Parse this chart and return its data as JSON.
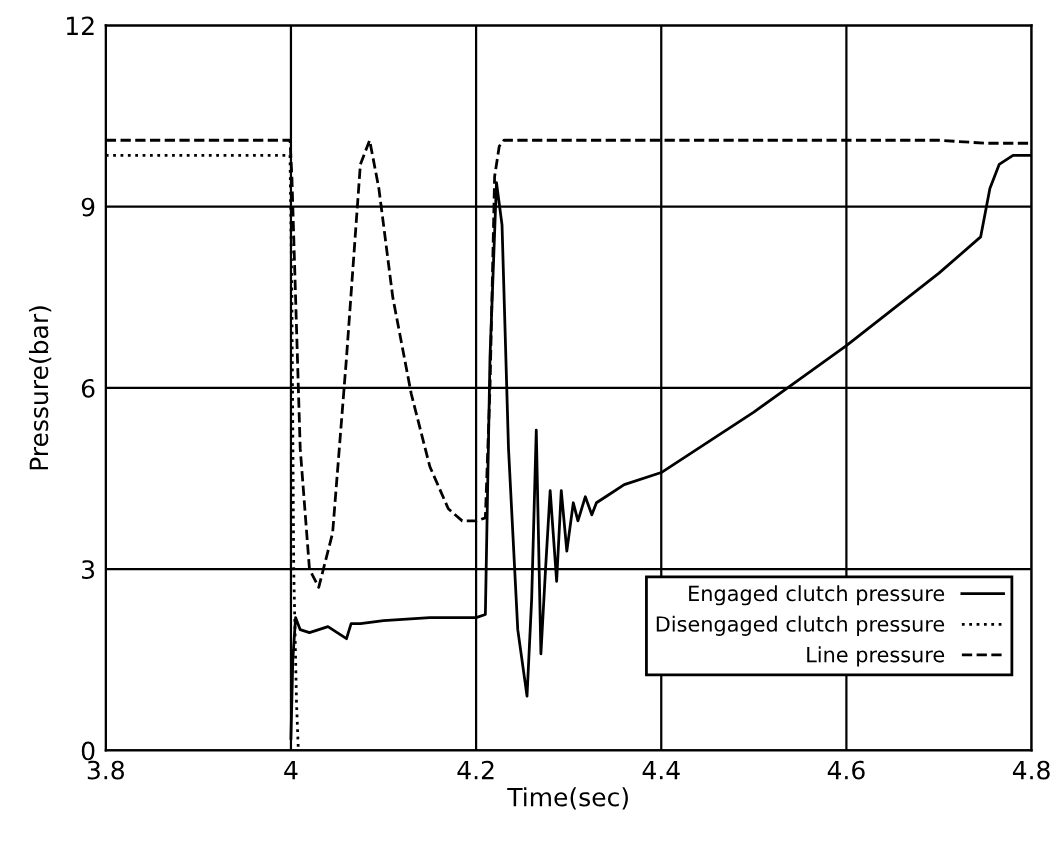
{
  "chart_data": {
    "type": "line",
    "xlabel": "Time(sec)",
    "ylabel": "Pressure(bar)",
    "xlim": [
      3.8,
      4.8
    ],
    "ylim": [
      0,
      12
    ],
    "xticks": [
      3.8,
      4,
      4.2,
      4.4,
      4.6,
      4.8
    ],
    "yticks": [
      0,
      3,
      6,
      9,
      12
    ],
    "grid": true,
    "legend": "bottom right",
    "marker": "none",
    "series": [
      {
        "name": "Engaged clutch pressure",
        "color": "#000000",
        "line_style": "solid",
        "x": [
          4.0,
          4.002,
          4.005,
          4.01,
          4.02,
          4.04,
          4.06,
          4.065,
          4.075,
          4.1,
          4.15,
          4.2,
          4.21,
          4.215,
          4.222,
          4.228,
          4.235,
          4.245,
          4.255,
          4.26,
          4.265,
          4.27,
          4.275,
          4.28,
          4.287,
          4.292,
          4.298,
          4.305,
          4.31,
          4.318,
          4.325,
          4.33,
          4.34,
          4.36,
          4.4,
          4.45,
          4.5,
          4.55,
          4.6,
          4.65,
          4.7,
          4.745,
          4.755,
          4.765,
          4.78,
          4.8
        ],
        "values": [
          0.2,
          1.5,
          2.2,
          2.0,
          1.95,
          2.05,
          1.85,
          2.1,
          2.1,
          2.15,
          2.2,
          2.2,
          2.25,
          6.5,
          9.4,
          8.7,
          5.0,
          2.0,
          0.9,
          2.5,
          5.3,
          1.6,
          3.0,
          4.3,
          2.8,
          4.3,
          3.3,
          4.1,
          3.8,
          4.2,
          3.9,
          4.1,
          4.2,
          4.4,
          4.6,
          5.1,
          5.6,
          6.15,
          6.7,
          7.3,
          7.9,
          8.5,
          9.3,
          9.7,
          9.85,
          9.85
        ]
      },
      {
        "name": "Disengaged clutch pressure",
        "color": "#000000",
        "line_style": "dotted",
        "x": [
          3.8,
          3.999,
          4.001,
          4.003,
          4.006,
          4.008
        ],
        "values": [
          9.85,
          9.85,
          7.5,
          3.0,
          0.8,
          0.0
        ]
      },
      {
        "name": "Line pressure",
        "color": "#000000",
        "line_style": "dashed",
        "x": [
          3.8,
          3.999,
          4.001,
          4.01,
          4.02,
          4.03,
          4.045,
          4.06,
          4.075,
          4.085,
          4.095,
          4.11,
          4.13,
          4.15,
          4.17,
          4.185,
          4.2,
          4.21,
          4.215,
          4.22,
          4.225,
          4.23,
          4.3,
          4.5,
          4.7,
          4.75,
          4.8
        ],
        "values": [
          10.1,
          10.1,
          9.5,
          5.0,
          3.0,
          2.7,
          3.6,
          6.5,
          9.7,
          10.1,
          9.3,
          7.5,
          5.9,
          4.7,
          4.0,
          3.8,
          3.8,
          3.85,
          6.0,
          9.5,
          10.0,
          10.1,
          10.1,
          10.1,
          10.1,
          10.05,
          10.05
        ]
      }
    ]
  }
}
